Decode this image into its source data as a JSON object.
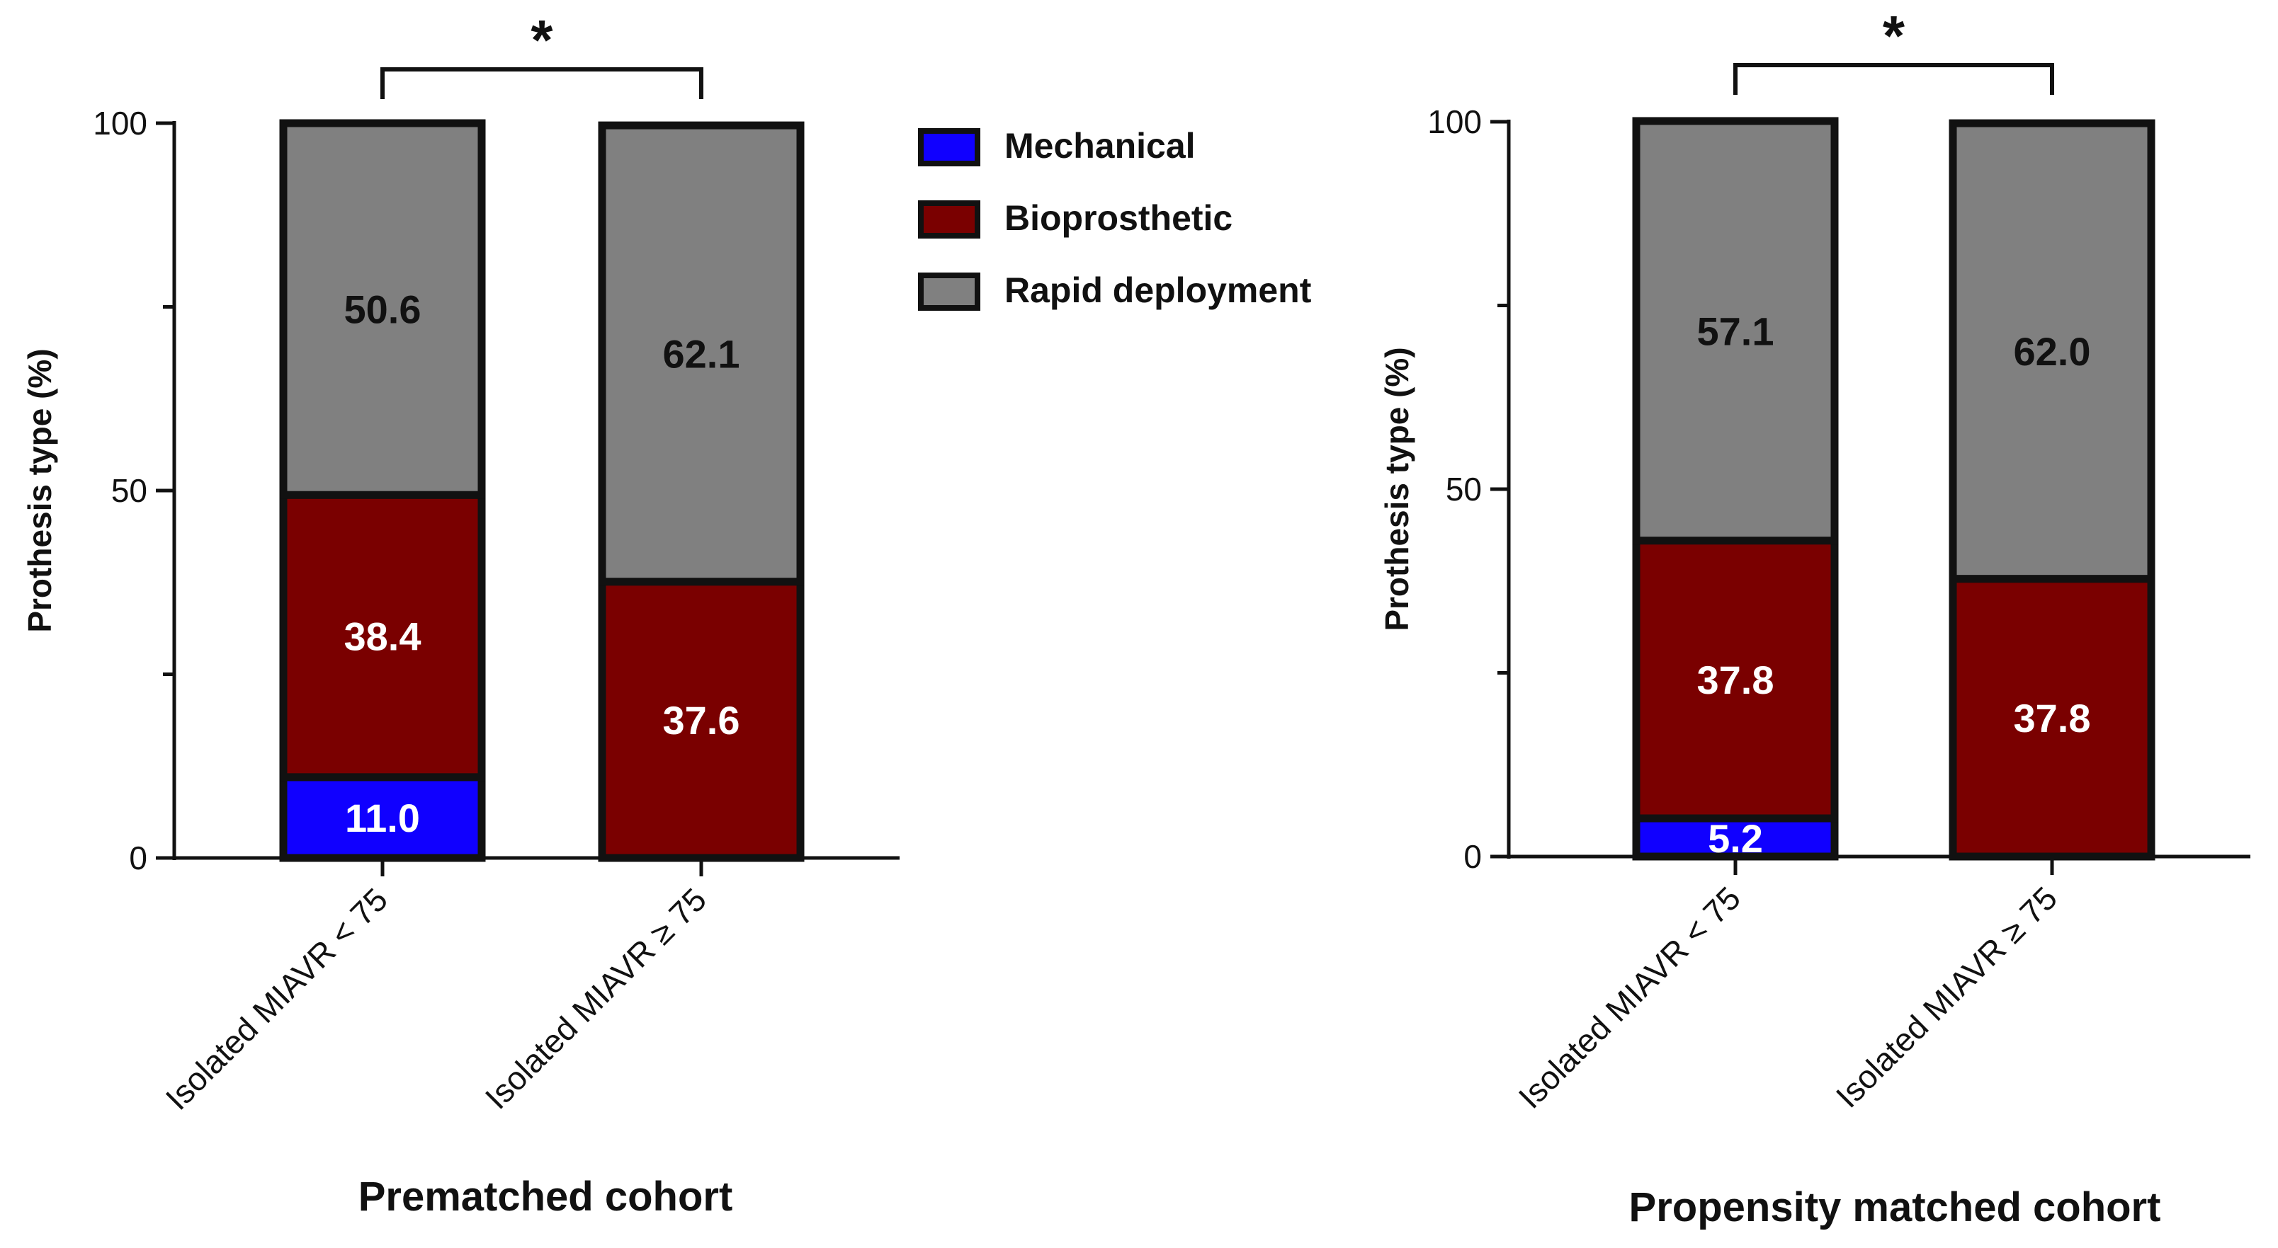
{
  "legend": {
    "position": "top-center",
    "items": [
      {
        "name": "Mechanical",
        "color": "#1000ff"
      },
      {
        "name": "Bioprosthetic",
        "color": "#7a0000"
      },
      {
        "name": "Rapid deployment",
        "color": "#808080"
      }
    ]
  },
  "chart_data": [
    {
      "type": "bar",
      "stacked": true,
      "title": "",
      "xlabel": "Prematched cohort",
      "ylabel": "Prothesis type (%)",
      "ylim": [
        0,
        100
      ],
      "yticks": [
        "0",
        "50",
        "100"
      ],
      "categories": [
        "Isolated MIAVR < 75",
        "Isolated MIAVR ≥ 75"
      ],
      "series": [
        {
          "name": "Mechanical",
          "values": [
            11.0,
            0
          ],
          "labels": [
            "11.0",
            ""
          ]
        },
        {
          "name": "Bioprosthetic",
          "values": [
            38.4,
            37.6
          ],
          "labels": [
            "38.4",
            "37.6"
          ]
        },
        {
          "name": "Rapid deployment",
          "values": [
            50.6,
            62.1
          ],
          "labels": [
            "50.6",
            "62.1"
          ]
        }
      ],
      "significance": "*"
    },
    {
      "type": "bar",
      "stacked": true,
      "title": "",
      "xlabel": "Propensity matched cohort",
      "ylabel": "Prothesis type (%)",
      "ylim": [
        0,
        100
      ],
      "yticks": [
        "0",
        "50",
        "100"
      ],
      "categories": [
        "Isolated MIAVR < 75",
        "Isolated MIAVR ≥ 75"
      ],
      "series": [
        {
          "name": "Mechanical",
          "values": [
            5.2,
            0
          ],
          "labels": [
            "5.2",
            ""
          ]
        },
        {
          "name": "Bioprosthetic",
          "values": [
            37.8,
            37.8
          ],
          "labels": [
            "37.8",
            "37.8"
          ]
        },
        {
          "name": "Rapid deployment",
          "values": [
            57.1,
            62.0
          ],
          "labels": [
            "57.1",
            "62.0"
          ]
        }
      ],
      "significance": "*"
    }
  ]
}
